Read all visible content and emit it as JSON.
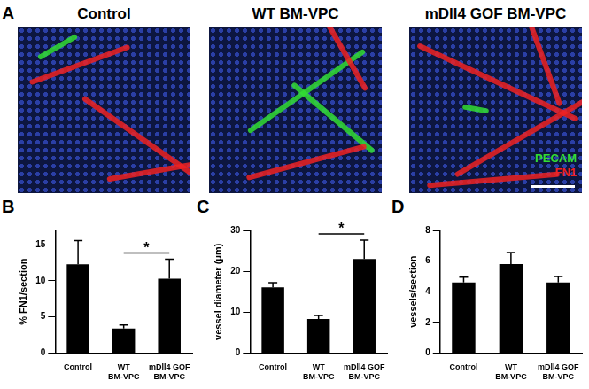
{
  "image_panel": {
    "panel": "A",
    "titles": [
      "Control",
      "WT BM-VPC",
      "mDll4 GOF BM-VPC"
    ],
    "stains": [
      {
        "name": "PECAM",
        "color": "#33dd33"
      },
      {
        "name": "FN1",
        "color": "#ee2222"
      }
    ]
  },
  "chart_data": [
    {
      "panel": "B",
      "type": "bar",
      "y_label": "% FN1/section",
      "categories": [
        "Control",
        "WT BM-VPC",
        "mDll4 GOF BM-VPC"
      ],
      "values": [
        12.3,
        3.4,
        10.3
      ],
      "errors": [
        3.3,
        0.5,
        2.7
      ],
      "color": "#000000",
      "ylim": [
        0,
        17
      ],
      "yticks": [
        0,
        5,
        10,
        15
      ],
      "grid": false,
      "significance": [
        {
          "between": [
            "WT BM-VPC",
            "mDll4 GOF BM-VPC"
          ],
          "label": "*"
        }
      ]
    },
    {
      "panel": "C",
      "type": "bar",
      "y_label": "vessel diameter (μm)",
      "categories": [
        "Control",
        "WT BM-VPC",
        "mDll4 GOF BM-VPC"
      ],
      "values": [
        16.1,
        8.3,
        23.0
      ],
      "errors": [
        1.1,
        0.9,
        4.6
      ],
      "color": "#000000",
      "ylim": [
        0,
        30
      ],
      "yticks": [
        0,
        10,
        20,
        30
      ],
      "grid": false,
      "significance": [
        {
          "between": [
            "WT BM-VPC",
            "mDll4 GOF BM-VPC"
          ],
          "label": "*"
        }
      ]
    },
    {
      "panel": "D",
      "type": "bar",
      "y_label": "vessels/section",
      "categories": [
        "Control",
        "WT BM-VPC",
        "mDll4 GOF BM-VPC"
      ],
      "values": [
        4.6,
        5.8,
        4.6
      ],
      "errors": [
        0.35,
        0.75,
        0.4
      ],
      "color": "#000000",
      "ylim": [
        0,
        8
      ],
      "yticks": [
        0,
        2,
        4,
        6,
        8
      ],
      "grid": false,
      "significance": []
    }
  ]
}
